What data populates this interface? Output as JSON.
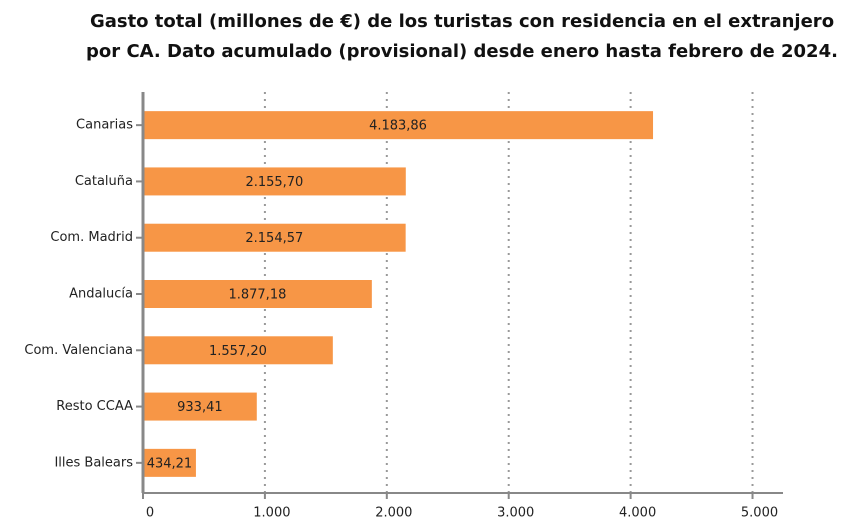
{
  "chart_data": {
    "type": "barh",
    "title": [
      "Gasto total (millones de €) de los turistas con residencia en el extranjero",
      "por CA. Dato acumulado (provisional) desde enero hasta febrero de 2024."
    ],
    "categories": [
      "Canarias",
      "Cataluña",
      "Com. Madrid",
      "Andalucía",
      "Com. Valenciana",
      "Resto CCAA",
      "Illes Balears"
    ],
    "values": [
      4183.86,
      2155.7,
      2154.57,
      1877.18,
      1557.2,
      933.41,
      434.21
    ],
    "value_labels": [
      "4.183,86",
      "2.155,70",
      "2.154,57",
      "1.877,18",
      "1.557,20",
      "933,41",
      "434,21"
    ],
    "color": "#f79646",
    "xlim": [
      0,
      5250
    ],
    "xticks": [
      0,
      {
        "value": 1000,
        "label": "1.000"
      },
      {
        "value": 2000,
        "label": "2.000"
      },
      {
        "value": 3000,
        "label": "3.000"
      },
      {
        "value": 4000,
        "label": "4.000"
      },
      {
        "value": 5000,
        "label": "5.000"
      }
    ],
    "grid": true
  }
}
